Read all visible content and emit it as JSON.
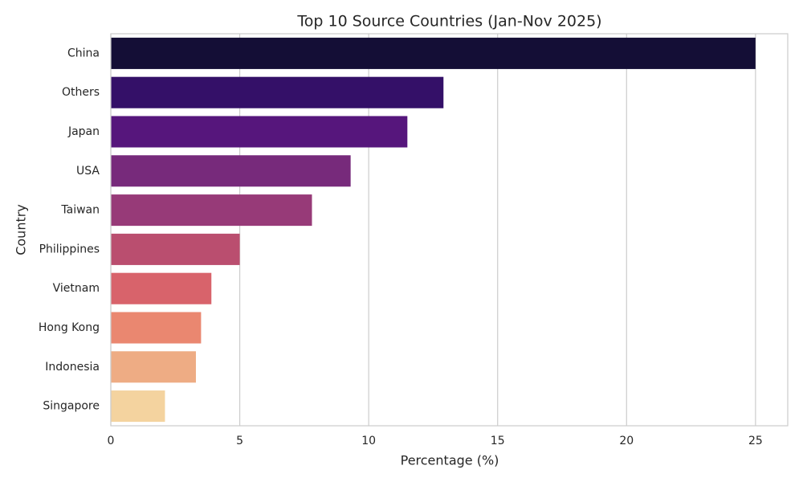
{
  "chart_data": {
    "type": "hbar",
    "title": "Top 10 Source Countries (Jan-Nov 2025)",
    "x_label": "Percentage (%)",
    "y_label": "Country",
    "categories": [
      "China",
      "Others",
      "Japan",
      "USA",
      "Taiwan",
      "Philippines",
      "Vietnam",
      "Hong Kong",
      "Indonesia",
      "Singapore"
    ],
    "values": [
      25.0,
      12.9,
      11.5,
      9.3,
      7.8,
      5.0,
      3.9,
      3.5,
      3.3,
      2.1
    ],
    "colors": [
      "#140e36",
      "#341068",
      "#56167c",
      "#772a7b",
      "#973a78",
      "#ba4e6f",
      "#d8636b",
      "#ea8770",
      "#eeac84",
      "#f4d39f"
    ],
    "xlim": [
      0,
      26.25
    ],
    "xticks": [
      0,
      5,
      10,
      15,
      20,
      25
    ],
    "grid": true
  }
}
